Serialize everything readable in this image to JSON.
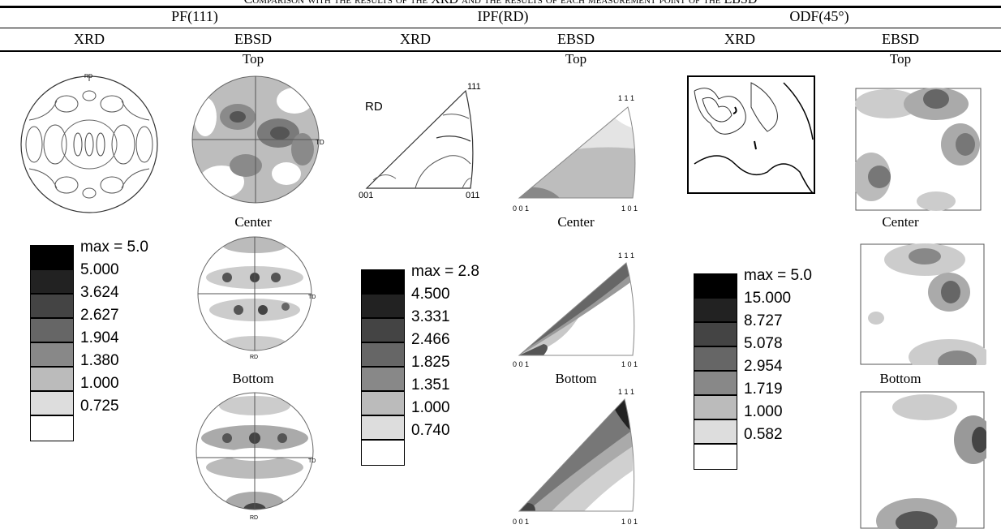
{
  "caption": "Comparison with the results of the XRD and the results of each measurement point of the EBSD",
  "groups": [
    {
      "label": "PF(111)"
    },
    {
      "label": "IPF(RD)"
    },
    {
      "label": "ODF(45°)"
    }
  ],
  "subheaders": [
    "XRD",
    "EBSD",
    "XRD",
    "EBSD",
    "XRD",
    "EBSD"
  ],
  "positions": {
    "top": "Top",
    "center": "Center",
    "bottom": "Bottom"
  },
  "pf_labels": {
    "rd": "RD",
    "td": "TD"
  },
  "ipf_labels": {
    "rd": "RD",
    "v111": "111",
    "v001": "001",
    "v011": "011",
    "e111": "1 1 1",
    "e001": "0 0 1",
    "e101": "1 0 1"
  },
  "legends": [
    {
      "max": "max = 5.0",
      "values": [
        "5.000",
        "3.624",
        "2.627",
        "1.904",
        "1.380",
        "1.000",
        "0.725"
      ]
    },
    {
      "max": "max = 2.8",
      "values": [
        "4.500",
        "3.331",
        "2.466",
        "1.825",
        "1.351",
        "1.000",
        "0.740"
      ]
    },
    {
      "max": "max = 5.0",
      "values": [
        "15.000",
        "8.727",
        "5.078",
        "2.954",
        "1.719",
        "1.000",
        "0.582"
      ]
    }
  ],
  "legend_shades": [
    "#000000",
    "#222222",
    "#444444",
    "#666666",
    "#888888",
    "#bbbbbb",
    "#dddddd",
    "#ffffff"
  ]
}
